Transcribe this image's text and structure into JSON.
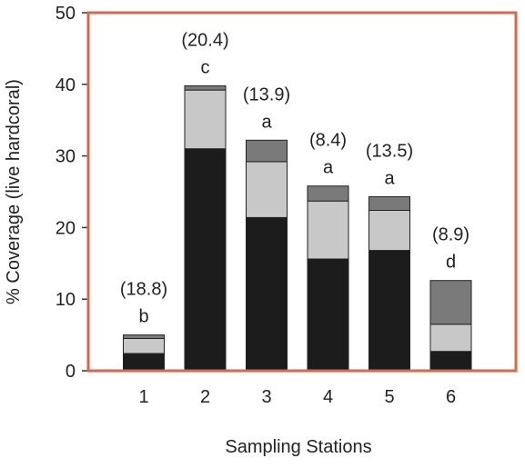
{
  "chart_data": {
    "type": "bar",
    "stacked": true,
    "title": "",
    "xlabel": "Sampling Stations",
    "ylabel": "% Coverage (live hardcoral)",
    "ylim": [
      0,
      50
    ],
    "yticks": [
      0,
      10,
      20,
      30,
      40,
      50
    ],
    "categories": [
      "1",
      "2",
      "3",
      "4",
      "5",
      "6"
    ],
    "series": [
      {
        "color": "#1c1c1c",
        "values": [
          2.4,
          31.0,
          21.4,
          15.6,
          16.8,
          2.7
        ]
      },
      {
        "color": "#c8c8c8",
        "values": [
          2.1,
          8.2,
          7.8,
          8.1,
          5.6,
          3.8
        ]
      },
      {
        "color": "#7a7a7a",
        "values": [
          0.5,
          0.6,
          3.0,
          2.1,
          1.9,
          6.1
        ]
      }
    ],
    "annotations": [
      {
        "category": "1",
        "value_label": "(18.8)",
        "letter": "b"
      },
      {
        "category": "2",
        "value_label": "(20.4)",
        "letter": "c"
      },
      {
        "category": "3",
        "value_label": "(13.9)",
        "letter": "a"
      },
      {
        "category": "4",
        "value_label": "(8.4)",
        "letter": "a"
      },
      {
        "category": "5",
        "value_label": "(13.5)",
        "letter": "a"
      },
      {
        "category": "6",
        "value_label": "(8.9)",
        "letter": "d"
      }
    ],
    "grid": false,
    "frame_color": "#d9664e"
  }
}
